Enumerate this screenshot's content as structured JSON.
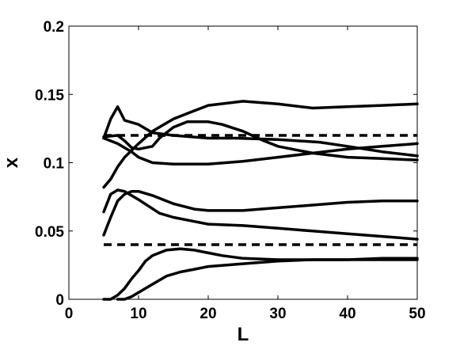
{
  "chart_data": {
    "type": "line",
    "title": "",
    "xlabel": "L",
    "ylabel": "x",
    "xlim": [
      0,
      50
    ],
    "ylim": [
      0,
      0.2
    ],
    "xticks": [
      0,
      10,
      20,
      30,
      40,
      50
    ],
    "yticks": [
      0,
      0.05,
      0.1,
      0.15,
      0.2
    ],
    "xtick_labels": [
      "0",
      "10",
      "20",
      "30",
      "40",
      "50"
    ],
    "ytick_labels": [
      "0",
      "0.05",
      "0.1",
      "0.15",
      "0.2"
    ],
    "grid": false,
    "legend": "none",
    "line_color": "#000000",
    "series": [
      {
        "style": "dashed",
        "x": [
          5,
          50
        ],
        "y": [
          0.12,
          0.12
        ]
      },
      {
        "style": "dashed",
        "x": [
          5,
          50
        ],
        "y": [
          0.04,
          0.04
        ]
      },
      {
        "style": "solid",
        "x": [
          5,
          6,
          7,
          8,
          10,
          12,
          15,
          20,
          24,
          30,
          36,
          40,
          45,
          50
        ],
        "y": [
          0.118,
          0.132,
          0.141,
          0.131,
          0.128,
          0.122,
          0.12,
          0.118,
          0.118,
          0.117,
          0.115,
          0.112,
          0.108,
          0.105
        ]
      },
      {
        "style": "solid",
        "x": [
          5,
          6,
          7,
          8,
          10,
          12,
          15,
          18,
          20,
          25,
          30,
          35,
          40,
          45,
          50
        ],
        "y": [
          0.082,
          0.088,
          0.097,
          0.104,
          0.114,
          0.123,
          0.132,
          0.138,
          0.142,
          0.145,
          0.143,
          0.14,
          0.141,
          0.142,
          0.143
        ]
      },
      {
        "style": "solid",
        "x": [
          5,
          7,
          8,
          9,
          10,
          12,
          13,
          15,
          17,
          20,
          22,
          25,
          28,
          30,
          35,
          40,
          45,
          50
        ],
        "y": [
          0.119,
          0.12,
          0.116,
          0.111,
          0.11,
          0.112,
          0.118,
          0.126,
          0.13,
          0.13,
          0.128,
          0.123,
          0.116,
          0.112,
          0.107,
          0.104,
          0.103,
          0.102
        ]
      },
      {
        "style": "solid",
        "x": [
          5,
          7,
          9,
          10,
          12,
          15,
          20,
          25,
          30,
          35,
          40,
          45,
          50
        ],
        "y": [
          0.118,
          0.114,
          0.108,
          0.104,
          0.1,
          0.099,
          0.099,
          0.101,
          0.104,
          0.107,
          0.11,
          0.112,
          0.114
        ]
      },
      {
        "style": "solid",
        "x": [
          5,
          6,
          7,
          8,
          10,
          13,
          15,
          18,
          20,
          25,
          30,
          35,
          40,
          45,
          50
        ],
        "y": [
          0.064,
          0.077,
          0.08,
          0.079,
          0.073,
          0.063,
          0.06,
          0.057,
          0.055,
          0.054,
          0.052,
          0.05,
          0.048,
          0.046,
          0.044
        ]
      },
      {
        "style": "solid",
        "x": [
          5,
          6,
          7,
          8,
          9,
          10,
          12,
          15,
          18,
          20,
          25,
          30,
          35,
          40,
          45,
          50
        ],
        "y": [
          0.047,
          0.06,
          0.072,
          0.077,
          0.079,
          0.079,
          0.076,
          0.07,
          0.066,
          0.065,
          0.065,
          0.067,
          0.069,
          0.071,
          0.072,
          0.072
        ]
      },
      {
        "style": "solid",
        "x": [
          5,
          6,
          7,
          8,
          9,
          10,
          11,
          12,
          14,
          16,
          18,
          20,
          22,
          25,
          30,
          35,
          40,
          45,
          50
        ],
        "y": [
          0,
          0,
          0.003,
          0.008,
          0.015,
          0.021,
          0.028,
          0.032,
          0.036,
          0.037,
          0.036,
          0.034,
          0.032,
          0.03,
          0.029,
          0.029,
          0.029,
          0.029,
          0.029
        ]
      },
      {
        "style": "solid",
        "x": [
          7,
          8,
          9,
          10,
          12,
          14,
          16,
          18,
          20,
          25,
          30,
          35,
          40,
          45,
          50
        ],
        "y": [
          0,
          0,
          0.002,
          0.005,
          0.011,
          0.017,
          0.02,
          0.022,
          0.024,
          0.026,
          0.028,
          0.029,
          0.029,
          0.03,
          0.03
        ]
      }
    ]
  }
}
